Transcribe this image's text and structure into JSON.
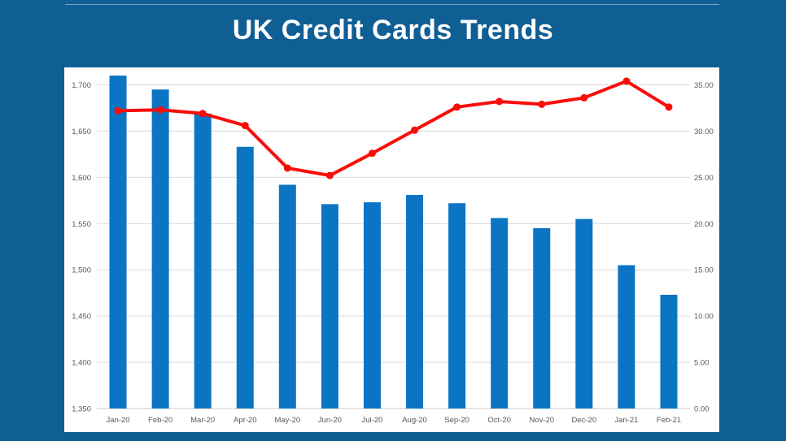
{
  "page": {
    "background_color": "#0F5E94",
    "panel_color": "#FFFFFF",
    "divider_color": "rgba(255,255,255,0.45)"
  },
  "header": {
    "title": "UK Credit Cards Trends",
    "title_color": "#FFFFFF"
  },
  "chart_data": {
    "type": "combo (bar + line, dual axis)",
    "title": "UK Credit Cards Trends",
    "categories": [
      "Jan-20",
      "Feb-20",
      "Mar-20",
      "Apr-20",
      "May-20",
      "Jun-20",
      "Jul-20",
      "Aug-20",
      "Sep-20",
      "Oct-20",
      "Nov-20",
      "Dec-20",
      "Jan-21",
      "Feb-21"
    ],
    "series": [
      {
        "key": "bars",
        "type": "bar",
        "axis": "left",
        "color": "#0B75C4",
        "values": [
          1710,
          1695,
          1669,
          1633,
          1592,
          1571,
          1573,
          1581,
          1572,
          1556,
          1545,
          1555,
          1505,
          1473
        ]
      },
      {
        "key": "line",
        "type": "line",
        "axis": "right",
        "color": "#F90D09",
        "marker": "circle",
        "values": [
          32.2,
          32.3,
          31.9,
          30.6,
          26.0,
          25.2,
          27.6,
          30.1,
          32.6,
          33.2,
          32.9,
          33.6,
          35.4,
          32.6
        ]
      }
    ],
    "left_axis": {
      "min": 1350,
      "labeled_max": 1700,
      "step": 50,
      "tick_labels": [
        "1,350",
        "1,400",
        "1,450",
        "1,500",
        "1,550",
        "1,600",
        "1,650",
        "1,700"
      ]
    },
    "right_axis": {
      "min": 0,
      "labeled_max": 35,
      "step": 5,
      "tick_labels": [
        "0.00",
        "5.00",
        "10.00",
        "15.00",
        "20.00",
        "25.00",
        "30.00",
        "35.00"
      ]
    },
    "grid": true,
    "gridline_color": "#DCDCDC",
    "baseline_color": "#C9C9C9",
    "axis_label_color": "#595959",
    "legend_position": "none"
  }
}
